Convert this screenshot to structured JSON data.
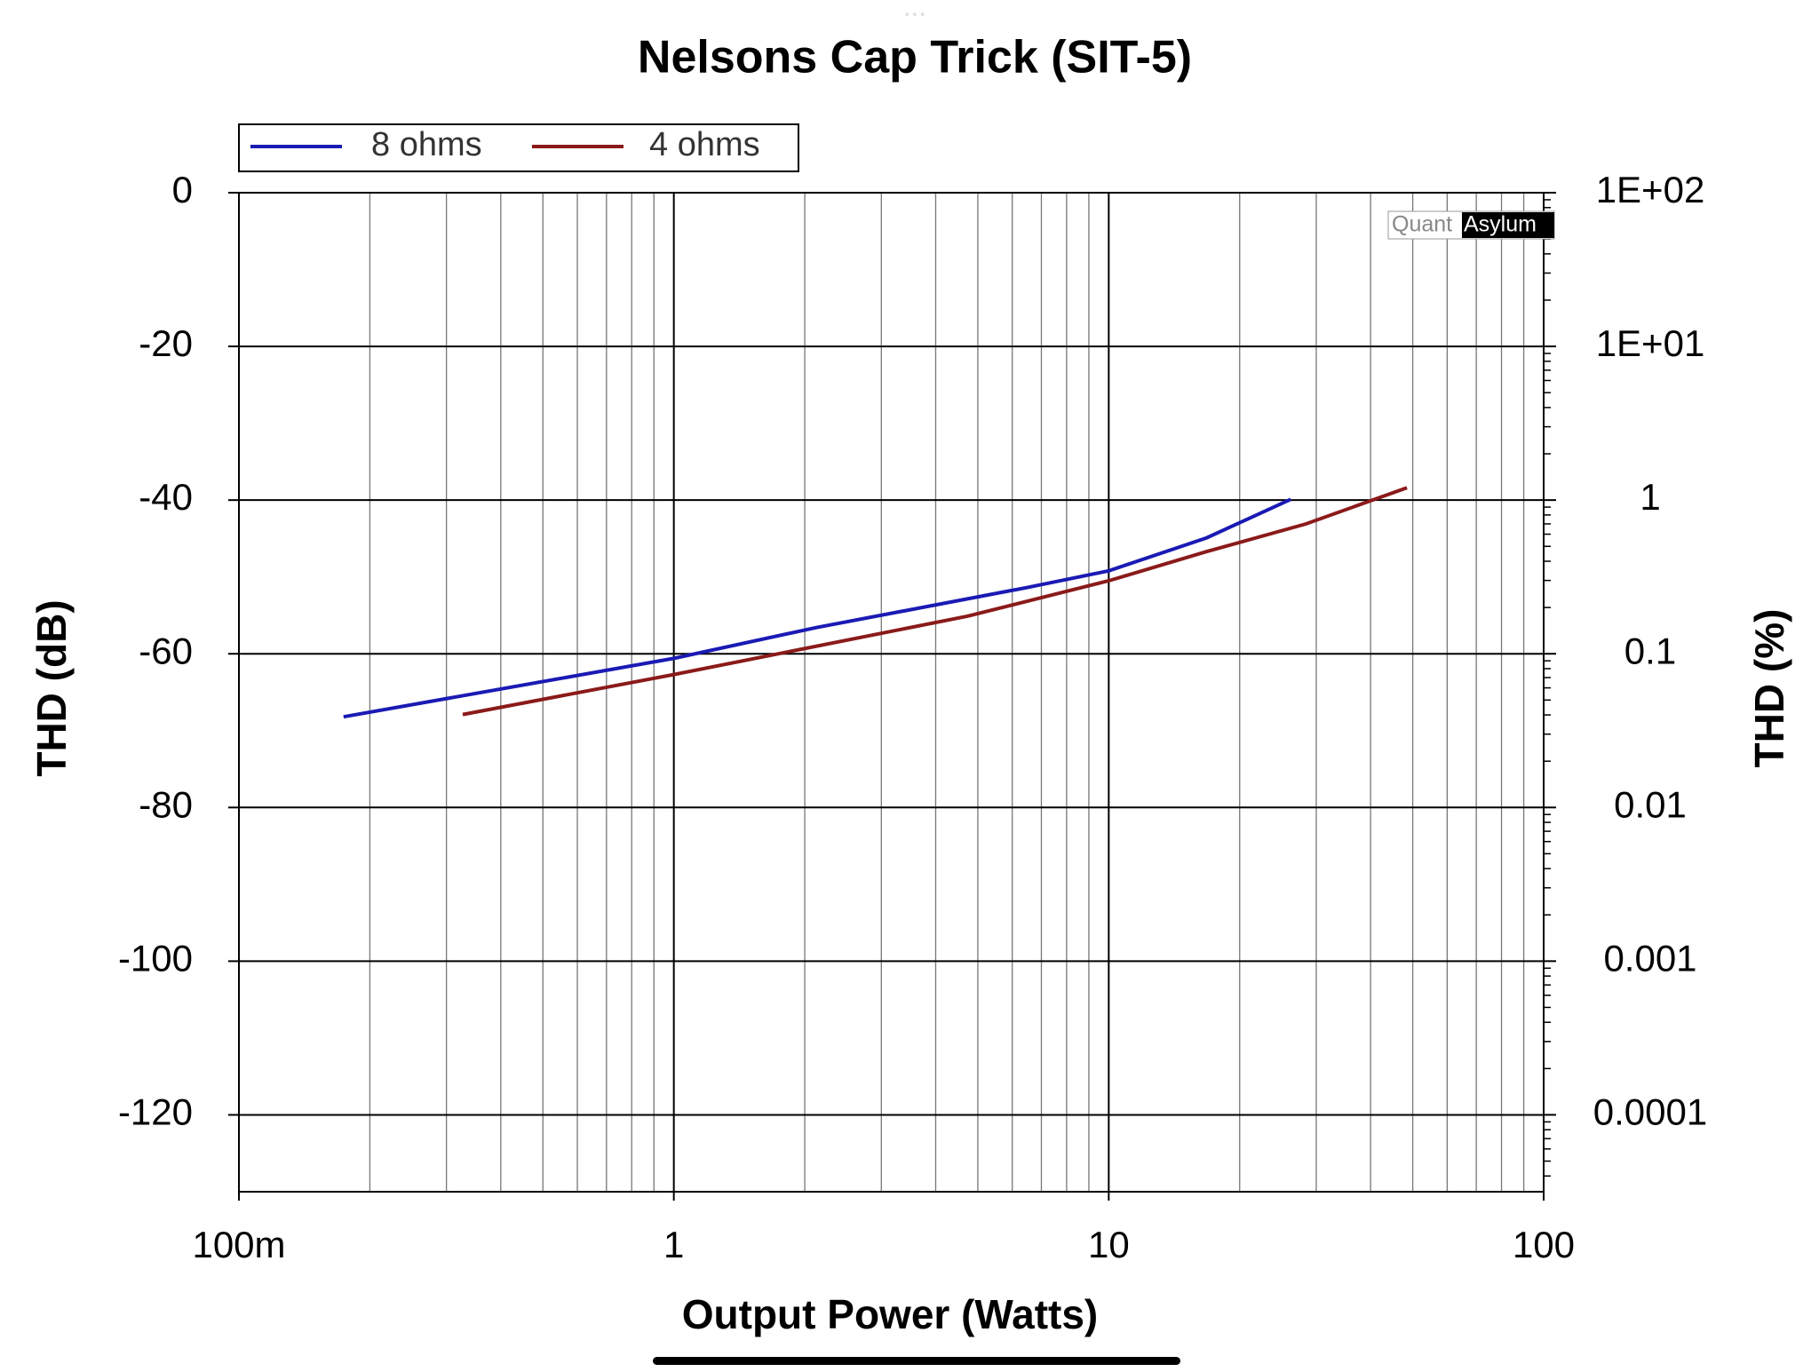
{
  "chart_data": {
    "type": "line",
    "title": "Nelsons Cap Trick (SIT-5)",
    "x_label": "Output Power (Watts)",
    "y_label": "THD (dB)",
    "y2_label": "THD (%)",
    "xscale": "log",
    "y2scale": "log",
    "grid": true,
    "minor_grid": true,
    "legend": "top-left",
    "watermark": {
      "left": "Quant",
      "right": "Asylum"
    },
    "xlim": [
      0.1,
      100
    ],
    "xticks": [
      {
        "value": 0.1,
        "label": "100m"
      },
      1,
      10,
      100
    ],
    "ylim": [
      -130,
      0
    ],
    "yticks": [
      0,
      -20,
      -40,
      -60,
      -80,
      -100,
      -120
    ],
    "y2lim": [
      3.16e-05,
      100
    ],
    "y2ticks": [
      {
        "value": 100,
        "label": "1E+02"
      },
      {
        "value": 10,
        "label": "1E+01"
      },
      1,
      0.1,
      0.01,
      0.001,
      0.0001
    ],
    "series": [
      {
        "name": "8 ohms",
        "color": "#1a1ab4",
        "x": [
          0.174,
          1,
          2.12,
          6.46,
          10,
          16.8,
          26.2
        ],
        "values": [
          -68.2,
          -60.6,
          -56.6,
          -51.4,
          -49.2,
          -44.9,
          -39.9
        ]
      },
      {
        "name": "4 ohms",
        "color": "#8b1a1a",
        "x": [
          0.327,
          1,
          4.74,
          10,
          16.8,
          28.4,
          48.5
        ],
        "values": [
          -67.9,
          -62.7,
          -55.1,
          -50.5,
          -46.7,
          -43.1,
          -38.4
        ]
      }
    ]
  }
}
